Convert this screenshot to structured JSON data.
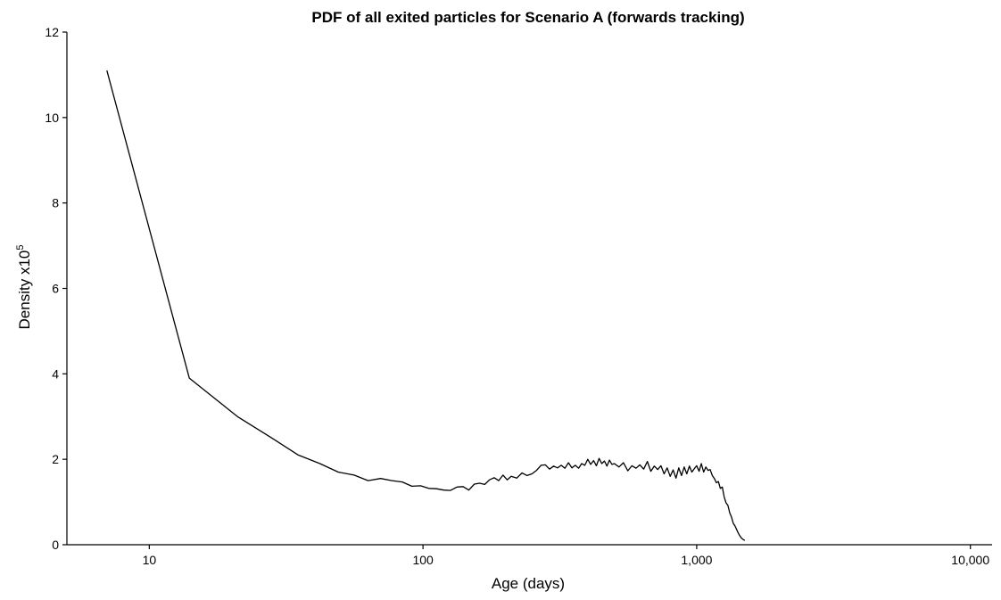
{
  "chart_data": {
    "type": "line",
    "title": "PDF of all exited particles for Scenario A (forwards tracking)",
    "xlabel": "Age (days)",
    "ylabel": {
      "main": "Density  x10",
      "superscript": "5"
    },
    "x_scale": "log10",
    "xlim": [
      5,
      12000
    ],
    "ylim": [
      0,
      12
    ],
    "x_ticks": [
      {
        "value": 10,
        "label": "10"
      },
      {
        "value": 100,
        "label": "100"
      },
      {
        "value": 1000,
        "label": "1,000"
      },
      {
        "value": 10000,
        "label": "10,000"
      }
    ],
    "y_ticks": [
      {
        "value": 0,
        "label": "0"
      },
      {
        "value": 2,
        "label": "2"
      },
      {
        "value": 4,
        "label": "4"
      },
      {
        "value": 6,
        "label": "6"
      },
      {
        "value": 8,
        "label": "8"
      },
      {
        "value": 10,
        "label": "10"
      },
      {
        "value": 12,
        "label": "12"
      }
    ],
    "grid": false,
    "legend": "none",
    "series": [
      {
        "color": "#000000",
        "x": [
          7,
          14,
          21,
          28,
          35,
          42,
          49,
          56,
          63,
          70,
          77,
          84,
          91,
          98,
          105,
          112,
          119,
          126,
          133,
          140,
          147,
          154,
          161,
          168,
          175,
          182,
          189,
          196,
          203,
          210,
          220,
          230,
          240,
          250,
          260,
          270,
          280,
          290,
          300,
          310,
          320,
          330,
          340,
          350,
          360,
          370,
          380,
          390,
          400,
          410,
          420,
          430,
          440,
          450,
          460,
          470,
          480,
          490,
          500,
          520,
          540,
          560,
          580,
          600,
          620,
          640,
          660,
          680,
          700,
          720,
          740,
          760,
          780,
          800,
          820,
          840,
          860,
          880,
          900,
          920,
          940,
          960,
          980,
          1000,
          1020,
          1040,
          1060,
          1080,
          1100,
          1120,
          1140,
          1160,
          1180,
          1200,
          1220,
          1240,
          1260,
          1280,
          1300,
          1320,
          1340,
          1360,
          1380,
          1400,
          1420,
          1440,
          1460,
          1480,
          1500
        ],
        "y": [
          11.1,
          3.9,
          3.0,
          2.5,
          2.1,
          1.9,
          1.7,
          1.63,
          1.5,
          1.55,
          1.5,
          1.47,
          1.37,
          1.38,
          1.32,
          1.31,
          1.28,
          1.27,
          1.35,
          1.36,
          1.28,
          1.42,
          1.44,
          1.41,
          1.52,
          1.57,
          1.5,
          1.63,
          1.52,
          1.6,
          1.56,
          1.68,
          1.62,
          1.66,
          1.74,
          1.86,
          1.87,
          1.77,
          1.84,
          1.8,
          1.86,
          1.79,
          1.92,
          1.8,
          1.86,
          1.79,
          1.9,
          1.86,
          2.0,
          1.88,
          1.97,
          1.85,
          2.02,
          1.9,
          1.96,
          1.84,
          1.98,
          1.88,
          1.9,
          1.82,
          1.92,
          1.73,
          1.85,
          1.79,
          1.87,
          1.77,
          1.95,
          1.72,
          1.84,
          1.76,
          1.85,
          1.66,
          1.8,
          1.6,
          1.75,
          1.56,
          1.8,
          1.62,
          1.82,
          1.66,
          1.84,
          1.7,
          1.78,
          1.85,
          1.72,
          1.9,
          1.7,
          1.82,
          1.74,
          1.76,
          1.62,
          1.55,
          1.45,
          1.48,
          1.32,
          1.35,
          1.12,
          0.98,
          0.92,
          0.75,
          0.65,
          0.5,
          0.44,
          0.35,
          0.27,
          0.2,
          0.15,
          0.12,
          0.1
        ]
      }
    ]
  }
}
